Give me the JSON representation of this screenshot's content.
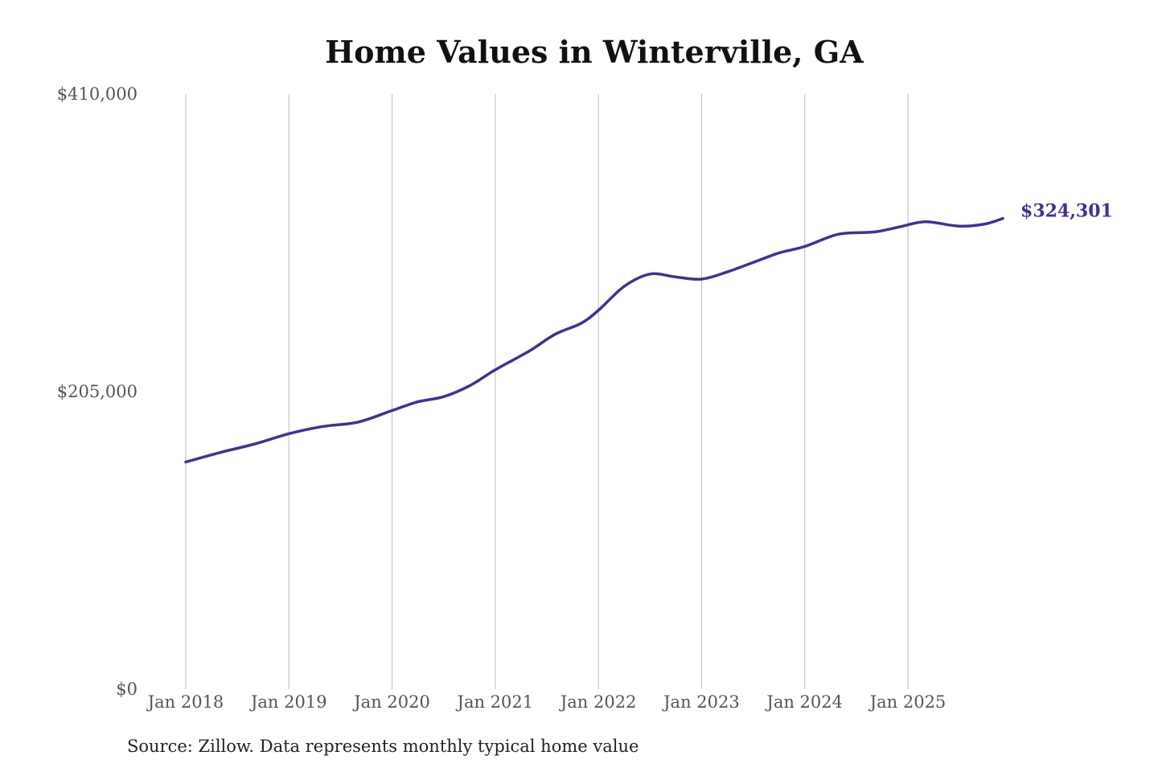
{
  "chart_data": {
    "type": "line",
    "title": "Home Values in Winterville, GA",
    "source": "Source: Zillow. Data represents monthly typical home value",
    "ylim": [
      0,
      410000
    ],
    "yticks": [
      {
        "value": 410000,
        "label": "$410,000"
      },
      {
        "value": 205000,
        "label": "$205,000"
      },
      {
        "value": 0,
        "label": "$0"
      }
    ],
    "xticks": [
      {
        "value": 2018.0,
        "label": "Jan 2018"
      },
      {
        "value": 2019.0,
        "label": "Jan 2019"
      },
      {
        "value": 2020.0,
        "label": "Jan 2020"
      },
      {
        "value": 2021.0,
        "label": "Jan 2021"
      },
      {
        "value": 2022.0,
        "label": "Jan 2022"
      },
      {
        "value": 2023.0,
        "label": "Jan 2023"
      },
      {
        "value": 2024.0,
        "label": "Jan 2024"
      },
      {
        "value": 2025.0,
        "label": "Jan 2025"
      }
    ],
    "grid": {
      "vertical": true,
      "horizontal": false
    },
    "line_color": "#3b3397",
    "end_label": "$324,301",
    "series": [
      {
        "points": [
          [
            2018.0,
            156500
          ],
          [
            2018.33,
            163000
          ],
          [
            2018.67,
            169000
          ],
          [
            2019.0,
            176000
          ],
          [
            2019.33,
            181000
          ],
          [
            2019.67,
            184000
          ],
          [
            2020.0,
            192000
          ],
          [
            2020.25,
            198000
          ],
          [
            2020.5,
            201500
          ],
          [
            2020.75,
            209000
          ],
          [
            2021.0,
            220000
          ],
          [
            2021.33,
            233000
          ],
          [
            2021.58,
            244500
          ],
          [
            2021.83,
            252000
          ],
          [
            2022.0,
            261000
          ],
          [
            2022.25,
            277500
          ],
          [
            2022.5,
            286000
          ],
          [
            2022.75,
            284000
          ],
          [
            2023.0,
            282500
          ],
          [
            2023.25,
            287500
          ],
          [
            2023.5,
            294000
          ],
          [
            2023.75,
            300500
          ],
          [
            2024.0,
            305000
          ],
          [
            2024.33,
            313500
          ],
          [
            2024.67,
            315000
          ],
          [
            2024.92,
            318500
          ],
          [
            2025.17,
            322000
          ],
          [
            2025.5,
            319000
          ],
          [
            2025.75,
            320500
          ],
          [
            2025.92,
            324301
          ]
        ]
      }
    ]
  }
}
